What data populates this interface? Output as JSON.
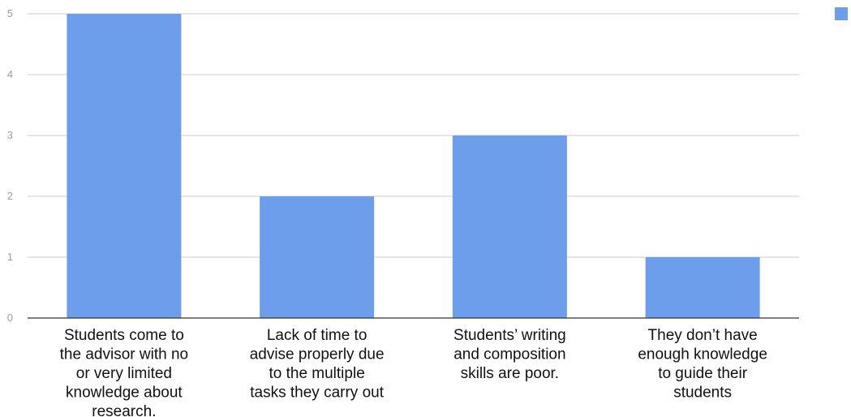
{
  "chart_data": {
    "type": "bar",
    "categories": [
      [
        "Students come to",
        "the advisor with no",
        "or very limited",
        "knowledge about",
        "research."
      ],
      [
        "Lack of time to",
        "advise properly due",
        "to the multiple",
        "tasks they carry out"
      ],
      [
        "Students’ writing",
        "and composition",
        "skills are poor."
      ],
      [
        "They don’t have",
        "enough knowledge",
        "to guide their",
        "students"
      ]
    ],
    "values": [
      5,
      2,
      3,
      1
    ],
    "ylim": [
      0,
      5
    ],
    "yticks": [
      0,
      1,
      2,
      3,
      4,
      5
    ],
    "title": "",
    "xlabel": "",
    "ylabel": "",
    "grid": true,
    "legend": "top-right",
    "bar_color": "#6d9eeb",
    "grid_color": "#cccccc",
    "axis_color": "#333333"
  }
}
